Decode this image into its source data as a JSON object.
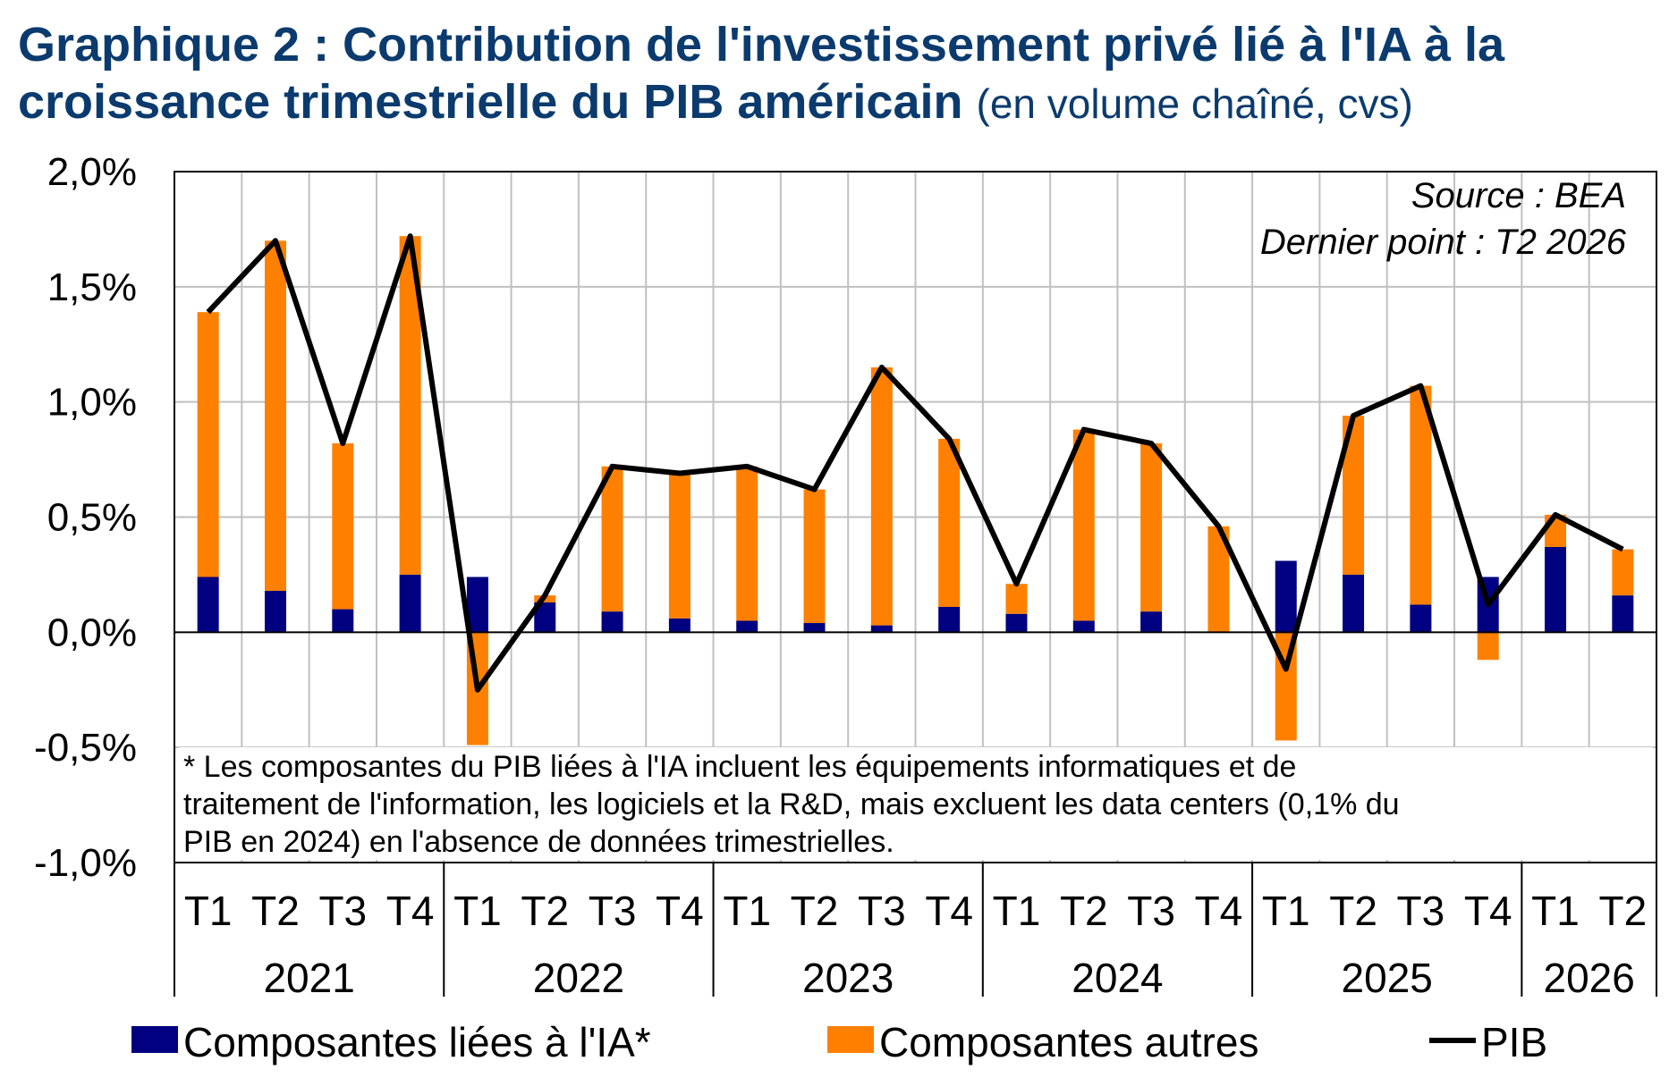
{
  "title": {
    "main": "Graphique 2 : Contribution de l'investissement privé lié à l'IA à la croissance trimestrielle du PIB américain",
    "sub": "(en volume chaîné, cvs)"
  },
  "source_lines": [
    "Source : BEA",
    "Dernier point : T2 2026"
  ],
  "footnote_lines": [
    "* Les composantes du PIB liées à l'IA incluent les équipements informatiques et de",
    "traitement de l'information, les logiciels et la R&D, mais excluent les data centers (0,1% du",
    "PIB  en 2024) en l'absence de données trimestrielles."
  ],
  "colors": {
    "ai": "#000080",
    "other": "#ff8000",
    "gdp": "#000000",
    "grid": "#c0c0c0"
  },
  "chart_data": {
    "type": "bar",
    "stacked": true,
    "categories": [
      "T1",
      "T2",
      "T3",
      "T4",
      "T1",
      "T2",
      "T3",
      "T4",
      "T1",
      "T2",
      "T3",
      "T4",
      "T1",
      "T2",
      "T3",
      "T4",
      "T1",
      "T2",
      "T3",
      "T4",
      "T1",
      "T2"
    ],
    "years": [
      {
        "label": "2021",
        "span": 4
      },
      {
        "label": "2022",
        "span": 4
      },
      {
        "label": "2023",
        "span": 4
      },
      {
        "label": "2024",
        "span": 4
      },
      {
        "label": "2025",
        "span": 4
      },
      {
        "label": "2026",
        "span": 2
      }
    ],
    "yticks": [
      "2,0%",
      "1,5%",
      "1,0%",
      "0,5%",
      "0,0%",
      "-0,5%",
      "-1,0%"
    ],
    "ylim": [
      -1.0,
      2.0
    ],
    "grid": true,
    "legend_position": "bottom",
    "series": [
      {
        "name": "Composantes liées à l'IA*",
        "kind": "bar",
        "color": "#000080",
        "values": [
          0.24,
          0.18,
          0.1,
          0.25,
          0.24,
          0.13,
          0.09,
          0.06,
          0.05,
          0.04,
          0.03,
          0.11,
          0.08,
          0.05,
          0.09,
          0.0,
          0.31,
          0.25,
          0.12,
          0.24,
          0.37,
          0.16
        ]
      },
      {
        "name": "Composantes autres",
        "kind": "bar",
        "color": "#ff8000",
        "values": [
          1.15,
          1.52,
          0.72,
          1.47,
          -0.49,
          0.03,
          0.63,
          0.63,
          0.67,
          0.58,
          1.12,
          0.73,
          0.13,
          0.83,
          0.73,
          0.46,
          -0.47,
          0.69,
          0.95,
          -0.12,
          0.14,
          0.2
        ]
      },
      {
        "name": "PIB",
        "kind": "line",
        "color": "#000000",
        "values": [
          1.39,
          1.7,
          0.82,
          1.72,
          -0.25,
          0.16,
          0.72,
          0.69,
          0.72,
          0.62,
          1.15,
          0.84,
          0.21,
          0.88,
          0.82,
          0.46,
          -0.16,
          0.94,
          1.07,
          0.12,
          0.51,
          0.36
        ]
      }
    ]
  }
}
